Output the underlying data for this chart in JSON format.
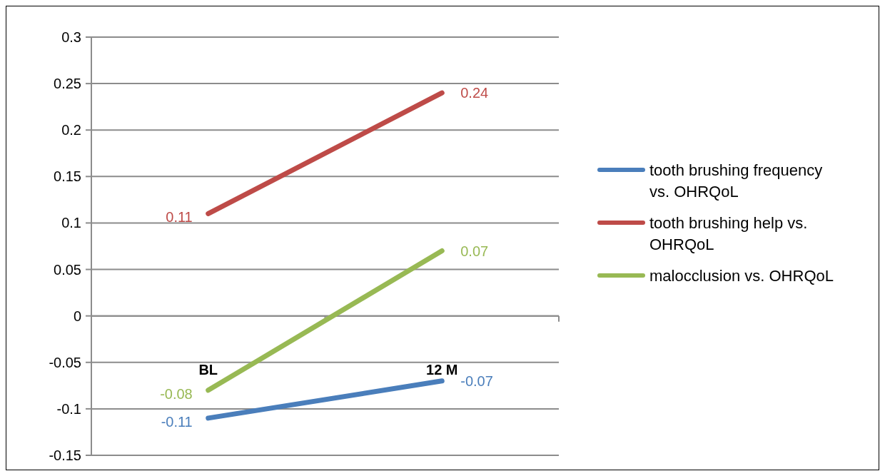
{
  "chart_data": {
    "type": "line",
    "categories": [
      "BL",
      "12 M"
    ],
    "series": [
      {
        "name": "tooth brushing frequency vs. OHRQoL",
        "color": "#4a7ebb",
        "values": [
          -0.11,
          -0.07
        ]
      },
      {
        "name": "tooth brushing help vs. OHRQoL",
        "color": "#be4b48",
        "values": [
          0.11,
          0.24
        ]
      },
      {
        "name": "malocclusion vs. OHRQoL",
        "color": "#98b954",
        "values": [
          -0.08,
          0.07
        ]
      }
    ],
    "ylim": [
      -0.15,
      0.3
    ],
    "yticks": [
      -0.15,
      -0.1,
      -0.05,
      0,
      0.05,
      0.1,
      0.15,
      0.2,
      0.25,
      0.3
    ],
    "grid": "y",
    "legend": "right",
    "data_labels": true,
    "marker": "none",
    "line_style": "solid"
  }
}
